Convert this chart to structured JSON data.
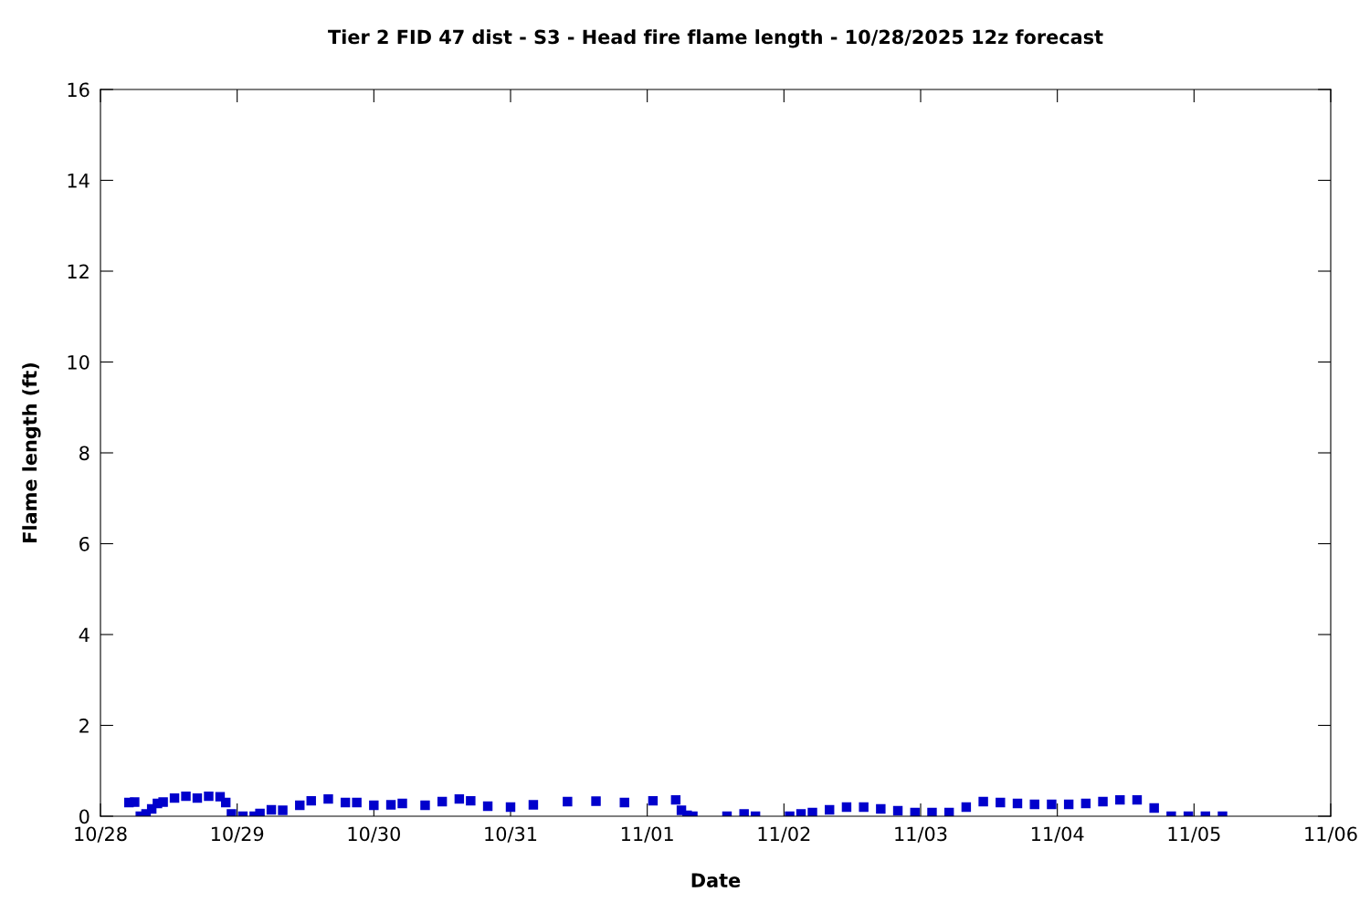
{
  "chart_data": {
    "type": "scatter",
    "title": "Tier 2 FID 47 dist - S3 - Head fire flame length - 10/28/2025 12z forecast",
    "xlabel": "Date",
    "ylabel": "Flame length (ft)",
    "marker": "square",
    "grid": false,
    "legend": false,
    "x": [
      "2025-10-28T05:00",
      "2025-10-28T06:00",
      "2025-10-28T07:00",
      "2025-10-28T08:00",
      "2025-10-28T09:00",
      "2025-10-28T10:00",
      "2025-10-28T11:00",
      "2025-10-28T13:00",
      "2025-10-28T15:00",
      "2025-10-28T17:00",
      "2025-10-28T19:00",
      "2025-10-28T21:00",
      "2025-10-28T22:00",
      "2025-10-28T23:00",
      "2025-10-29T01:00",
      "2025-10-29T03:00",
      "2025-10-29T04:00",
      "2025-10-29T06:00",
      "2025-10-29T08:00",
      "2025-10-29T11:00",
      "2025-10-29T13:00",
      "2025-10-29T16:00",
      "2025-10-29T19:00",
      "2025-10-29T21:00",
      "2025-10-30T00:00",
      "2025-10-30T03:00",
      "2025-10-30T05:00",
      "2025-10-30T09:00",
      "2025-10-30T12:00",
      "2025-10-30T15:00",
      "2025-10-30T17:00",
      "2025-10-30T20:00",
      "2025-10-31T00:00",
      "2025-10-31T04:00",
      "2025-10-31T10:00",
      "2025-10-31T15:00",
      "2025-10-31T20:00",
      "2025-11-01T01:00",
      "2025-11-01T05:00",
      "2025-11-01T06:00",
      "2025-11-01T07:00",
      "2025-11-01T08:00",
      "2025-11-01T14:00",
      "2025-11-01T17:00",
      "2025-11-01T19:00",
      "2025-11-02T01:00",
      "2025-11-02T03:00",
      "2025-11-02T05:00",
      "2025-11-02T08:00",
      "2025-11-02T11:00",
      "2025-11-02T14:00",
      "2025-11-02T17:00",
      "2025-11-02T20:00",
      "2025-11-02T23:00",
      "2025-11-03T02:00",
      "2025-11-03T05:00",
      "2025-11-03T08:00",
      "2025-11-03T11:00",
      "2025-11-03T14:00",
      "2025-11-03T17:00",
      "2025-11-03T20:00",
      "2025-11-03T23:00",
      "2025-11-04T02:00",
      "2025-11-04T05:00",
      "2025-11-04T08:00",
      "2025-11-04T11:00",
      "2025-11-04T14:00",
      "2025-11-04T17:00",
      "2025-11-04T20:00",
      "2025-11-04T23:00",
      "2025-11-05T02:00",
      "2025-11-05T05:00"
    ],
    "series": [
      {
        "color": "#0000cc",
        "values": [
          0.3,
          0.31,
          0.0,
          0.05,
          0.16,
          0.28,
          0.31,
          0.4,
          0.44,
          0.4,
          0.44,
          0.43,
          0.3,
          0.05,
          0.0,
          0.0,
          0.06,
          0.14,
          0.13,
          0.24,
          0.34,
          0.38,
          0.3,
          0.3,
          0.24,
          0.25,
          0.28,
          0.24,
          0.32,
          0.38,
          0.34,
          0.22,
          0.2,
          0.25,
          0.32,
          0.33,
          0.3,
          0.34,
          0.36,
          0.13,
          0.02,
          0.0,
          0.0,
          0.05,
          0.0,
          0.0,
          0.05,
          0.08,
          0.14,
          0.2,
          0.2,
          0.16,
          0.12,
          0.08,
          0.08,
          0.08,
          0.2,
          0.32,
          0.3,
          0.28,
          0.26,
          0.26,
          0.26,
          0.28,
          0.32,
          0.36,
          0.36,
          0.18,
          0.0,
          0.0,
          0.0,
          0.0
        ]
      }
    ],
    "xlim": [
      "2025-10-28",
      "2025-11-06"
    ],
    "xticks": [
      {
        "value": "2025-10-28",
        "label": "10/28"
      },
      {
        "value": "2025-10-29",
        "label": "10/29"
      },
      {
        "value": "2025-10-30",
        "label": "10/30"
      },
      {
        "value": "2025-10-31",
        "label": "10/31"
      },
      {
        "value": "2025-11-01",
        "label": "11/01"
      },
      {
        "value": "2025-11-02",
        "label": "11/02"
      },
      {
        "value": "2025-11-03",
        "label": "11/03"
      },
      {
        "value": "2025-11-04",
        "label": "11/04"
      },
      {
        "value": "2025-11-05",
        "label": "11/05"
      },
      {
        "value": "2025-11-06",
        "label": "11/06"
      }
    ],
    "ylim": [
      0,
      16
    ],
    "yticks": [
      0,
      2,
      4,
      6,
      8,
      10,
      12,
      14,
      16
    ]
  }
}
